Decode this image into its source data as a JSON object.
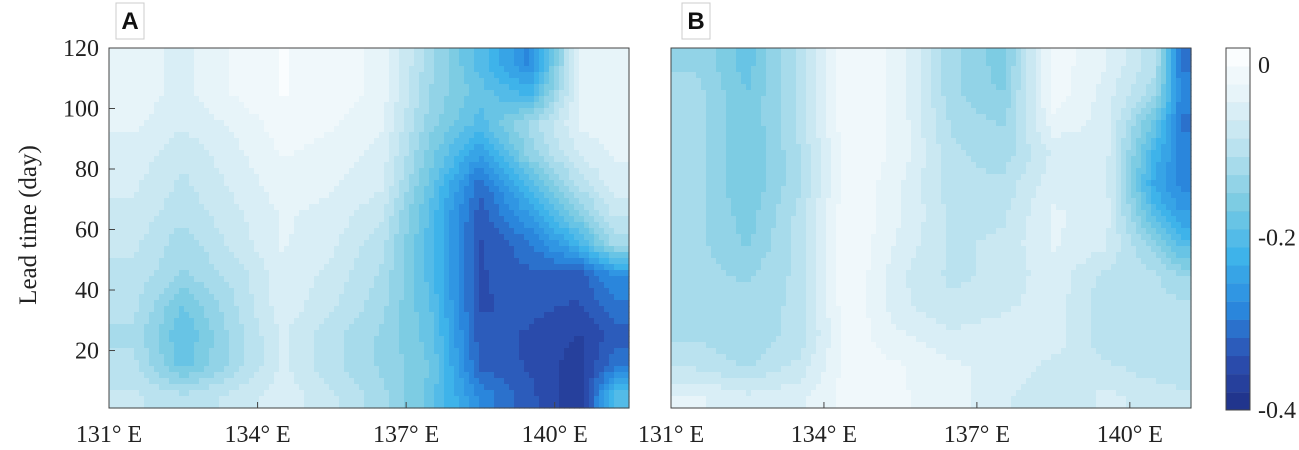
{
  "chart_data": [
    {
      "type": "heatmap",
      "panel_label": "A",
      "ylabel": "Lead time (day)",
      "x_ticks": [
        "131° E",
        "134° E",
        "137° E",
        "140° E"
      ],
      "x_tick_values": [
        131,
        134,
        137,
        140
      ],
      "y_ticks": [
        "20",
        "40",
        "60",
        "80",
        "100",
        "120"
      ],
      "y_tick_values": [
        20,
        40,
        60,
        80,
        100,
        120
      ],
      "xlim": [
        131,
        141.5
      ],
      "ylim": [
        1,
        120
      ],
      "x": [
        131.5,
        132.5,
        133.5,
        134.5,
        135.5,
        136.5,
        137.5,
        138.5,
        139.5,
        140.5,
        141.2
      ],
      "y": [
        5,
        15,
        25,
        35,
        45,
        55,
        65,
        75,
        85,
        95,
        105,
        115
      ],
      "z": [
        [
          -0.08,
          -0.1,
          -0.08,
          -0.05,
          -0.08,
          -0.12,
          -0.18,
          -0.28,
          -0.33,
          -0.38,
          -0.2
        ],
        [
          -0.1,
          -0.18,
          -0.12,
          -0.06,
          -0.1,
          -0.13,
          -0.17,
          -0.32,
          -0.34,
          -0.37,
          -0.3
        ],
        [
          -0.11,
          -0.19,
          -0.12,
          -0.06,
          -0.1,
          -0.13,
          -0.18,
          -0.33,
          -0.34,
          -0.36,
          -0.33
        ],
        [
          -0.1,
          -0.17,
          -0.11,
          -0.05,
          -0.08,
          -0.12,
          -0.19,
          -0.34,
          -0.33,
          -0.34,
          -0.3
        ],
        [
          -0.09,
          -0.13,
          -0.1,
          -0.05,
          -0.07,
          -0.11,
          -0.2,
          -0.34,
          -0.32,
          -0.33,
          -0.27
        ],
        [
          -0.08,
          -0.12,
          -0.08,
          -0.04,
          -0.06,
          -0.1,
          -0.2,
          -0.34,
          -0.3,
          -0.22,
          -0.12
        ],
        [
          -0.07,
          -0.1,
          -0.07,
          -0.04,
          -0.05,
          -0.08,
          -0.2,
          -0.33,
          -0.25,
          -0.15,
          -0.08
        ],
        [
          -0.06,
          -0.09,
          -0.06,
          -0.03,
          -0.04,
          -0.06,
          -0.18,
          -0.31,
          -0.2,
          -0.1,
          -0.05
        ],
        [
          -0.05,
          -0.08,
          -0.05,
          -0.02,
          -0.03,
          -0.05,
          -0.16,
          -0.25,
          -0.14,
          -0.06,
          -0.04
        ],
        [
          -0.04,
          -0.06,
          -0.04,
          -0.01,
          -0.02,
          -0.04,
          -0.14,
          -0.2,
          -0.12,
          -0.04,
          -0.03
        ],
        [
          -0.03,
          -0.05,
          -0.02,
          0.0,
          -0.01,
          -0.03,
          -0.13,
          -0.18,
          -0.22,
          -0.04,
          -0.03
        ],
        [
          -0.03,
          -0.05,
          -0.02,
          0.0,
          -0.01,
          -0.03,
          -0.12,
          -0.2,
          -0.28,
          -0.04,
          -0.03
        ]
      ]
    },
    {
      "type": "heatmap",
      "panel_label": "B",
      "x_ticks": [
        "131° E",
        "134° E",
        "137° E",
        "140° E"
      ],
      "x_tick_values": [
        131,
        134,
        137,
        140
      ],
      "xlim": [
        131,
        141.2
      ],
      "ylim": [
        1,
        120
      ],
      "x": [
        131.5,
        132.5,
        133.5,
        134.5,
        135.5,
        136.5,
        137.5,
        138.5,
        139.5,
        140.5,
        141.0
      ],
      "y": [
        5,
        15,
        25,
        35,
        45,
        55,
        65,
        75,
        85,
        95,
        105,
        115
      ],
      "z": [
        [
          -0.04,
          -0.06,
          -0.05,
          -0.01,
          -0.02,
          -0.03,
          -0.06,
          -0.08,
          -0.06,
          -0.07,
          -0.08
        ],
        [
          -0.09,
          -0.11,
          -0.08,
          -0.01,
          -0.02,
          -0.04,
          -0.05,
          -0.07,
          -0.08,
          -0.1,
          -0.1
        ],
        [
          -0.11,
          -0.12,
          -0.1,
          -0.01,
          -0.04,
          -0.06,
          -0.05,
          -0.05,
          -0.1,
          -0.1,
          -0.1
        ],
        [
          -0.12,
          -0.12,
          -0.1,
          0.0,
          -0.06,
          -0.08,
          -0.07,
          -0.05,
          -0.1,
          -0.1,
          -0.1
        ],
        [
          -0.12,
          -0.13,
          -0.1,
          0.0,
          -0.06,
          -0.09,
          -0.08,
          -0.05,
          -0.09,
          -0.1,
          -0.13
        ],
        [
          -0.12,
          -0.15,
          -0.1,
          0.0,
          -0.05,
          -0.09,
          -0.08,
          -0.04,
          -0.06,
          -0.14,
          -0.2
        ],
        [
          -0.12,
          -0.16,
          -0.1,
          0.0,
          -0.04,
          -0.09,
          -0.09,
          -0.04,
          -0.05,
          -0.2,
          -0.25
        ],
        [
          -0.12,
          -0.17,
          -0.11,
          0.0,
          -0.04,
          -0.1,
          -0.1,
          -0.05,
          -0.05,
          -0.24,
          -0.28
        ],
        [
          -0.12,
          -0.17,
          -0.11,
          0.0,
          -0.03,
          -0.1,
          -0.12,
          -0.06,
          -0.05,
          -0.22,
          -0.28
        ],
        [
          -0.12,
          -0.17,
          -0.1,
          0.0,
          -0.03,
          -0.11,
          -0.13,
          -0.03,
          -0.05,
          -0.18,
          -0.3
        ],
        [
          -0.12,
          -0.17,
          -0.1,
          0.0,
          -0.03,
          -0.12,
          -0.15,
          -0.01,
          -0.05,
          -0.12,
          -0.28
        ],
        [
          -0.13,
          -0.18,
          -0.1,
          0.0,
          -0.03,
          -0.12,
          -0.16,
          -0.01,
          -0.04,
          -0.1,
          -0.3
        ]
      ]
    }
  ],
  "colorbar": {
    "min": -0.4,
    "max": 0.02,
    "levels": 20,
    "ticks": [
      "0",
      "-0.2",
      "-0.4"
    ],
    "tick_values": [
      0,
      -0.2,
      -0.4
    ],
    "colors": [
      "#1f2f86",
      "#2c4fb0",
      "#2a8ae0",
      "#3fb4ea",
      "#7ccbe3",
      "#b7e1ee",
      "#e3f2f8",
      "#ffffff"
    ]
  }
}
